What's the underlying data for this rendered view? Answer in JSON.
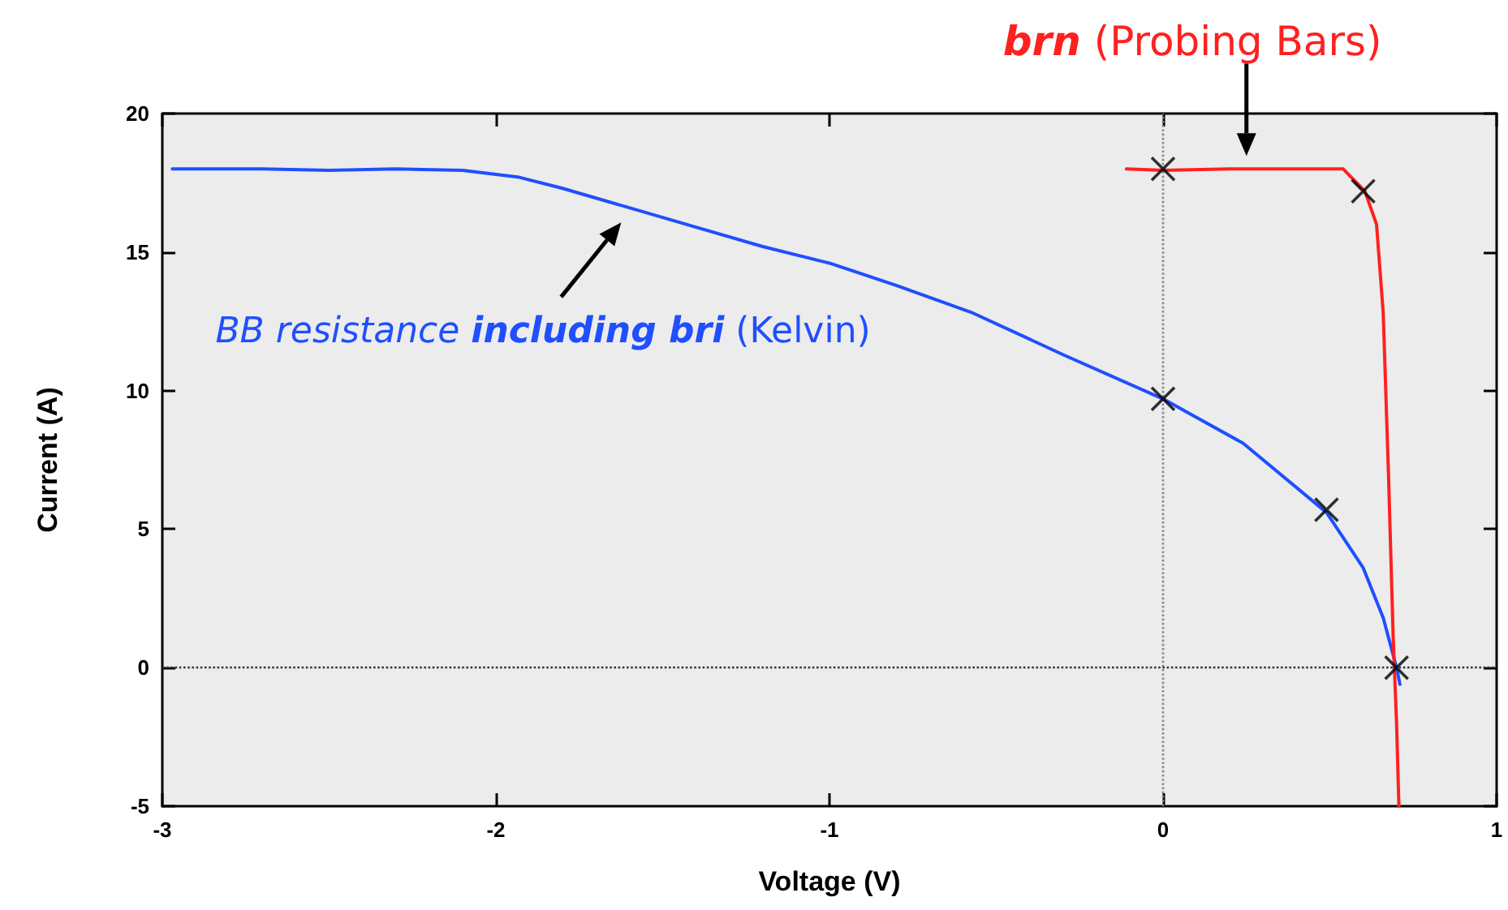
{
  "chart_data": {
    "type": "line",
    "xlabel": "Voltage (V)",
    "ylabel": "Current (A)",
    "xlim": [
      -3,
      1
    ],
    "xticks": [
      -3,
      -2,
      -1,
      0,
      1
    ],
    "ylim": [
      -5,
      20
    ],
    "yticks": [
      -5,
      0,
      5,
      10,
      15,
      20
    ],
    "grid": false,
    "line_style": "solid",
    "marker": "none",
    "series": [
      {
        "color": "#1f4fff",
        "x": [
          -2.97,
          -2.9,
          -2.7,
          -2.5,
          -2.3,
          -2.1,
          -1.93,
          -1.8,
          -1.6,
          -1.4,
          -1.2,
          -1.0,
          -0.8,
          -0.57,
          -0.3,
          0,
          0.24,
          0.49,
          0.6,
          0.66,
          0.7,
          0.71
        ],
        "values": [
          18.0,
          18.0,
          18.0,
          17.95,
          18.0,
          17.95,
          17.7,
          17.3,
          16.6,
          15.9,
          15.2,
          14.6,
          13.8,
          12.8,
          11.3,
          9.7,
          8.1,
          5.6,
          3.6,
          1.8,
          0,
          -0.6
        ]
      },
      {
        "color": "#ff2020",
        "x": [
          -0.11,
          0,
          0.2,
          0.4,
          0.54,
          0.605,
          0.64,
          0.66,
          0.676,
          0.69,
          0.7,
          0.707
        ],
        "values": [
          18.0,
          17.95,
          18.0,
          18.0,
          18.0,
          17.2,
          16.0,
          12.8,
          6.9,
          1.05,
          -2,
          -5
        ]
      },
      {
        "type": "scatter",
        "marker": "cross",
        "color": "#000000",
        "x": [
          0,
          0.6,
          0,
          0.49,
          0.7
        ],
        "values": [
          18,
          17.2,
          9.7,
          5.7,
          0
        ]
      }
    ],
    "ref_lines": [
      {
        "axis": "x",
        "value": 0,
        "line_style": "dotted",
        "color": "#888888"
      },
      {
        "axis": "y",
        "value": 0,
        "line_style": "dotted",
        "color": "#333333"
      }
    ],
    "annotations": [
      {
        "text": "BB resistance including bri (Kelvin)",
        "x": -1.6,
        "y": 16.6
      },
      {
        "text": "brn (Probing Bars)",
        "x": 0.25,
        "y": 18
      }
    ]
  }
}
